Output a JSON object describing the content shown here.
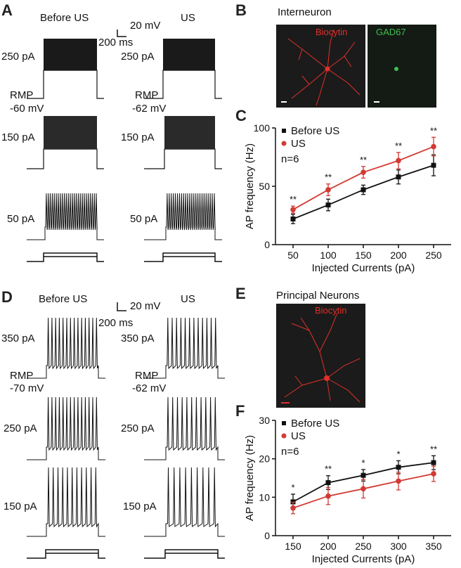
{
  "panels": {
    "A": {
      "letter": "A",
      "col_before": "Before US",
      "col_us": "US",
      "scale_v": "20 mV",
      "scale_t": "200 ms",
      "rmp_label": "RMP",
      "rmp_before": "-60 mV",
      "rmp_us": "-62 mV",
      "currents": [
        "250 pA",
        "150 pA",
        "50 pA"
      ]
    },
    "B": {
      "letter": "B",
      "title": "Interneuron",
      "stain1": "Biocytin",
      "stain2": "GAD67"
    },
    "D": {
      "letter": "D",
      "col_before": "Before US",
      "col_us": "US",
      "scale_v": "20 mV",
      "scale_t": "200 ms",
      "rmp_label": "RMP",
      "rmp_before": "-70 mV",
      "rmp_us": "-62 mV",
      "currents": [
        "350 pA",
        "250 pA",
        "150 pA"
      ]
    },
    "E": {
      "letter": "E",
      "title": "Principal Neurons",
      "stain1": "Biocytin"
    }
  },
  "colors": {
    "before": "#111111",
    "us": "#d23a33",
    "biocytin": "#e0302a",
    "gad67": "#3fbf4f",
    "image_bg": "#1b1b1b"
  },
  "chart_data": [
    {
      "panel": "C",
      "type": "line",
      "xlabel": "Injected Currents (pA)",
      "ylabel": "AP frequency (Hz)",
      "x": [
        50,
        100,
        150,
        200,
        250
      ],
      "xlim": [
        25,
        275
      ],
      "ylim": [
        0,
        100
      ],
      "yticks": [
        0,
        50,
        100
      ],
      "n_label": "n=6",
      "legend": [
        "Before US",
        "US"
      ],
      "series": [
        {
          "name": "Before US",
          "values": [
            22,
            34,
            47,
            58,
            68
          ],
          "errors": [
            4,
            5,
            4,
            6,
            9
          ]
        },
        {
          "name": "US",
          "values": [
            30,
            47,
            62,
            72,
            84
          ],
          "errors": [
            3,
            5,
            5,
            7,
            8
          ]
        }
      ],
      "significance": [
        "**",
        "**",
        "**",
        "**",
        "**"
      ]
    },
    {
      "panel": "F",
      "type": "line",
      "xlabel": "Injected Currents (pA)",
      "ylabel": "AP frequency (Hz)",
      "x": [
        150,
        200,
        250,
        300,
        350
      ],
      "xlim": [
        125,
        375
      ],
      "ylim": [
        0,
        30
      ],
      "yticks": [
        0,
        10,
        20,
        30
      ],
      "n_label": "n=6",
      "legend": [
        "Before US",
        "US"
      ],
      "series": [
        {
          "name": "Before US",
          "values": [
            8.8,
            13.8,
            15.7,
            17.8,
            19.0
          ],
          "errors": [
            2.0,
            1.8,
            1.5,
            1.7,
            1.8
          ]
        },
        {
          "name": "US",
          "values": [
            7.2,
            10.3,
            12.2,
            14.2,
            16.1
          ],
          "errors": [
            1.5,
            2.2,
            2.4,
            2.3,
            2.0
          ]
        }
      ],
      "significance": [
        "*",
        "**",
        "*",
        "*",
        "**"
      ]
    }
  ]
}
